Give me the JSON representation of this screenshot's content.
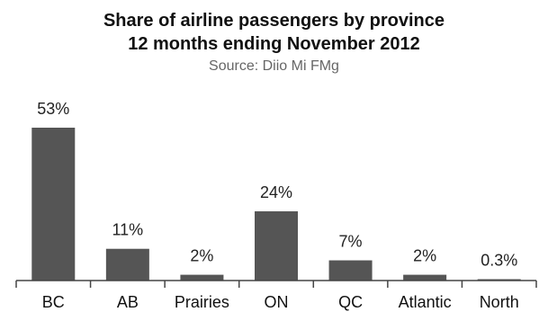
{
  "chart_data": {
    "type": "bar",
    "title": "Share of airline passengers by province",
    "subtitle": "12 months ending November 2012",
    "source": "Source: Diio Mi FMg",
    "categories": [
      "BC",
      "AB",
      "Prairies",
      "ON",
      "QC",
      "Atlantic",
      "North"
    ],
    "values": [
      53,
      11,
      2,
      24,
      7,
      2,
      0.3
    ],
    "value_labels": [
      "53%",
      "11%",
      "2%",
      "24%",
      "7%",
      "2%",
      "0.3%"
    ],
    "xlabel": "",
    "ylabel": "",
    "ylim": [
      0,
      53
    ],
    "grid": false,
    "legend": "none",
    "bar_color": "#555555",
    "axis_color": "#444444"
  }
}
